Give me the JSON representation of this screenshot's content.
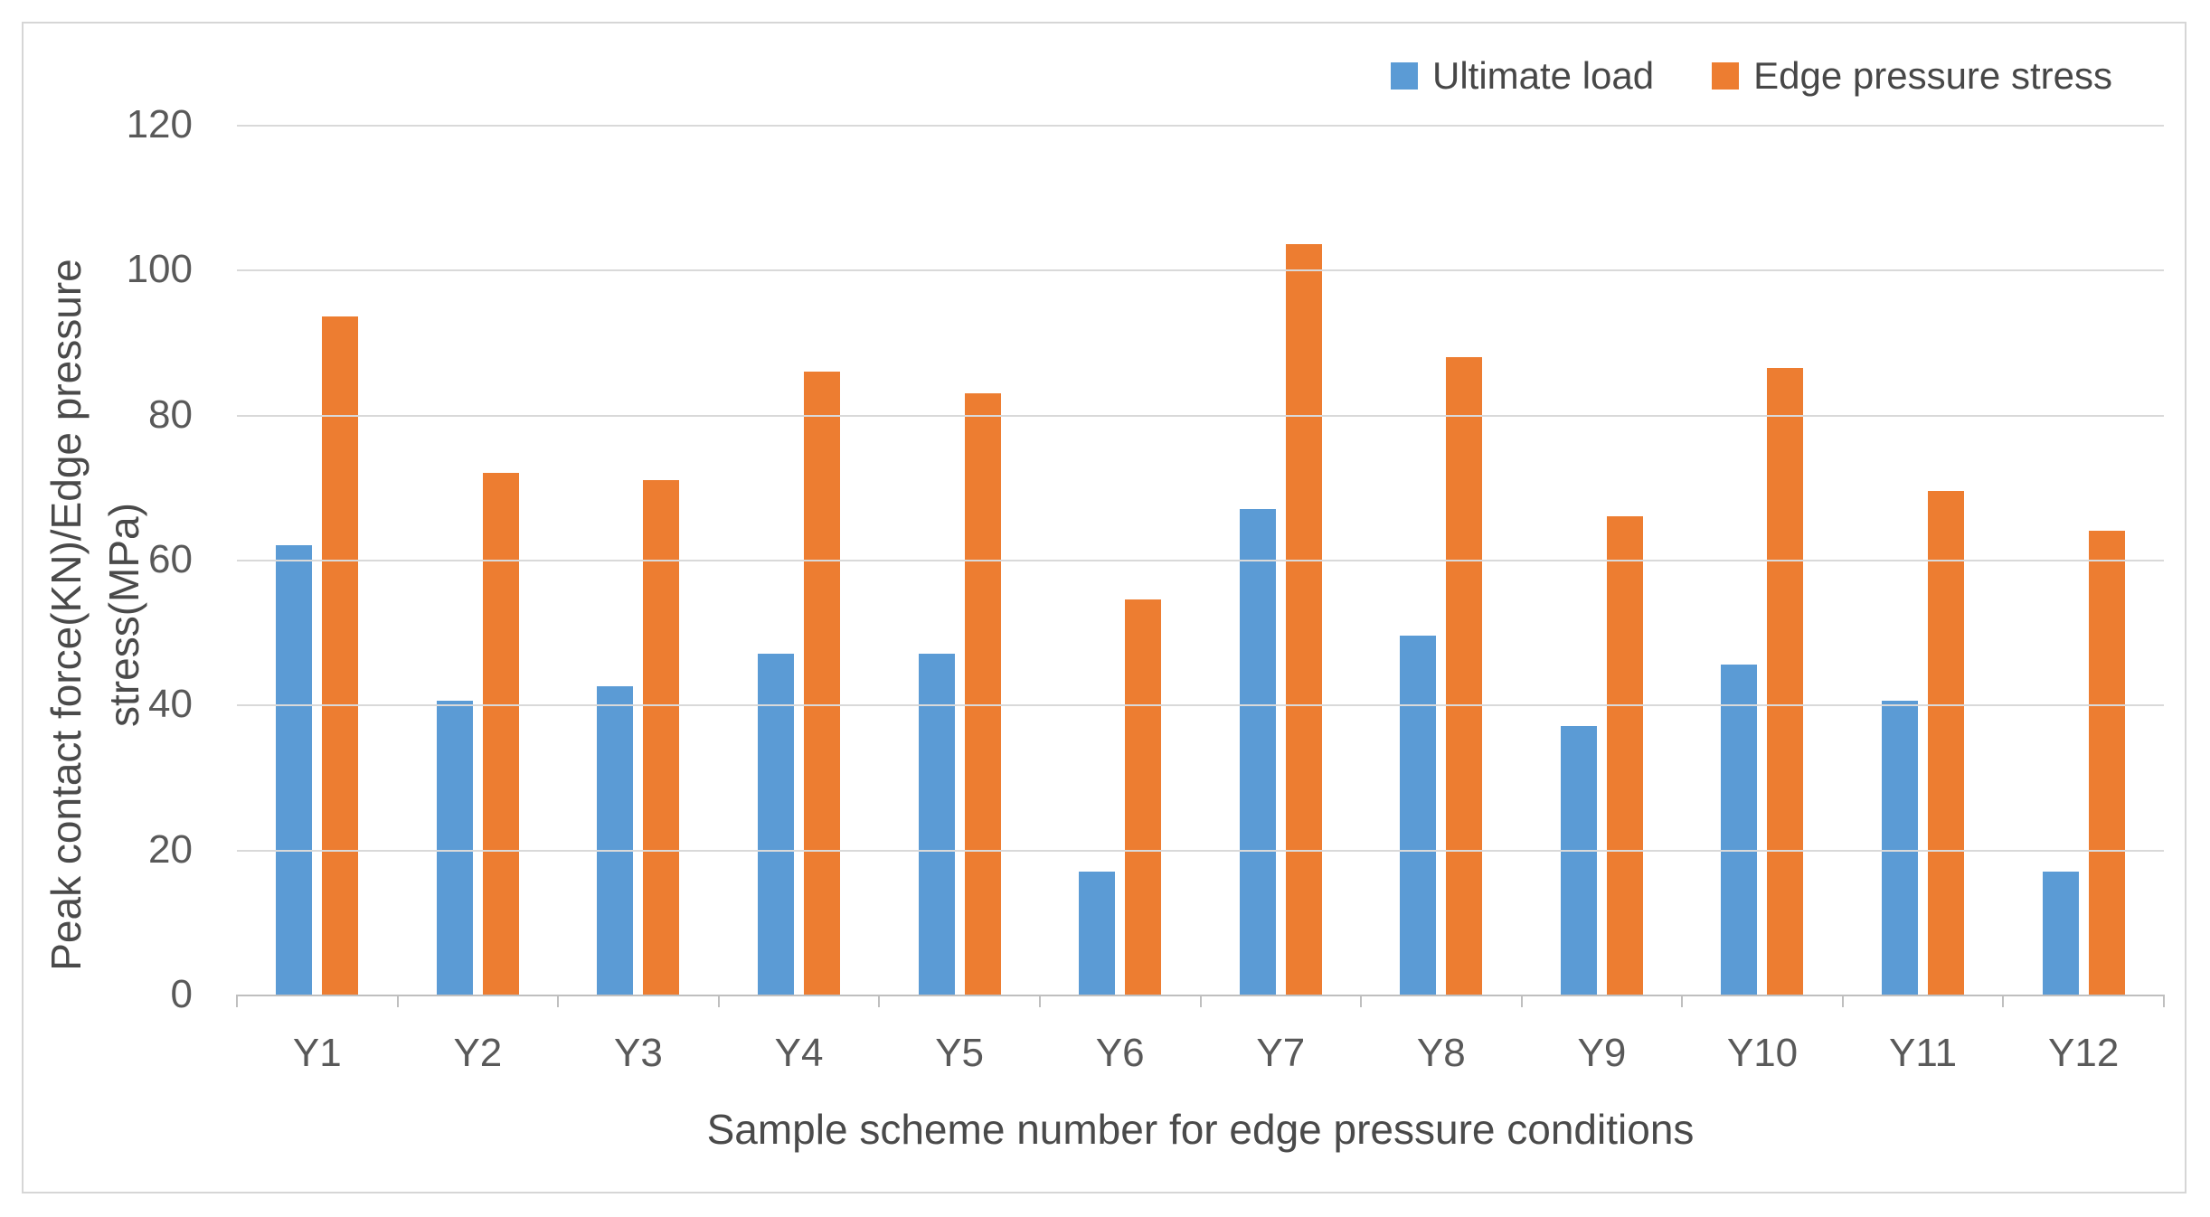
{
  "chart_data": {
    "type": "bar",
    "title": "",
    "categories": [
      "Y1",
      "Y2",
      "Y3",
      "Y4",
      "Y5",
      "Y6",
      "Y7",
      "Y8",
      "Y9",
      "Y10",
      "Y11",
      "Y12"
    ],
    "series": [
      {
        "name": "Ultimate load",
        "color": "#5B9BD5",
        "values": [
          62,
          40.5,
          42.5,
          47,
          47,
          17,
          67,
          49.5,
          37,
          45.5,
          40.5,
          17
        ]
      },
      {
        "name": "Edge pressure stress",
        "color": "#ED7D31",
        "values": [
          93.5,
          72,
          71,
          86,
          83,
          54.5,
          103.5,
          88,
          66,
          86.5,
          69.5,
          64
        ]
      }
    ],
    "xlabel": "Sample scheme number for edge pressure conditions",
    "ylabel": "Peak contact force(KN)/Edge pressure stress(MPa)",
    "ylabel_line1": "Peak contact force(KN)/Edge pressure",
    "ylabel_line2": "stress(MPa)",
    "ylim": [
      0,
      120
    ],
    "yticks": [
      0,
      20,
      40,
      60,
      80,
      100,
      120
    ],
    "grid": true,
    "legend_position": "top-right",
    "colors": {
      "gridline": "#d9d9d9",
      "axis_line": "#bfbfbf",
      "tick_text": "#595959",
      "title_text": "#4a4a4a",
      "frame_border": "#d6d6d6",
      "background": "#ffffff"
    }
  }
}
